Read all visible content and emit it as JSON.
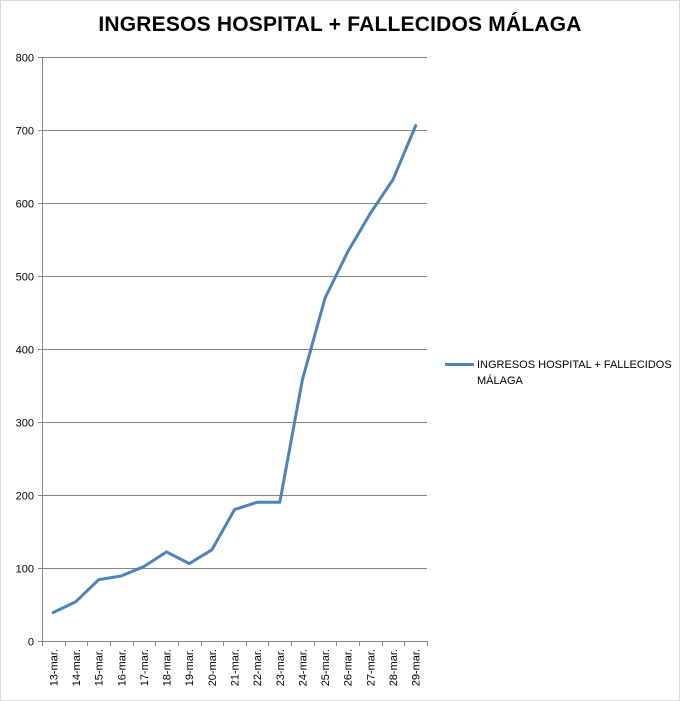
{
  "chart_data": {
    "type": "line",
    "title": "INGRESOS HOSPITAL + FALLECIDOS MÁLAGA",
    "xlabel": "",
    "ylabel": "",
    "ylim": [
      0,
      800
    ],
    "yticks": [
      "0",
      "100",
      "200",
      "300",
      "400",
      "500",
      "600",
      "700",
      "800"
    ],
    "categories": [
      "13-mar.",
      "14-mar.",
      "15-mar.",
      "16-mar.",
      "17-mar.",
      "18-mar.",
      "19-mar.",
      "20-mar.",
      "21-mar.",
      "22-mar.",
      "23-mar.",
      "24-mar.",
      "25-mar.",
      "26-mar.",
      "27-mar.",
      "28-mar.",
      "29-mar."
    ],
    "series": [
      {
        "name": "INGRESOS HOSPITAL + FALLECIDOS MÁLAGA",
        "color": "#4f81bd",
        "values": [
          39,
          54,
          84,
          89,
          102,
          122,
          106,
          125,
          180,
          190,
          190,
          358,
          470,
          533,
          586,
          632,
          706
        ]
      }
    ],
    "grid": true,
    "legend_position": "right"
  }
}
